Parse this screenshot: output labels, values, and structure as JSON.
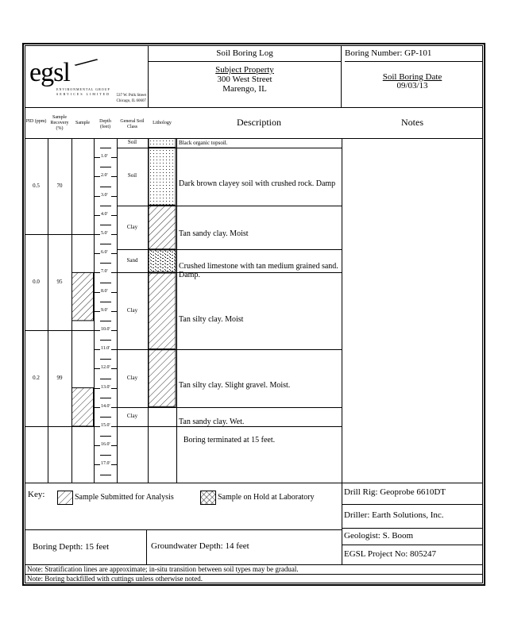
{
  "header": {
    "title": "Soil Boring Log",
    "boring_number": "Boring Number: GP-101",
    "subject_label": "Subject Property",
    "address1": "300 West Street",
    "address2": "Marengo, IL",
    "date_label": "Soil Boring Date",
    "date": "09/03/13",
    "logo": {
      "mark": "egsl",
      "line1": "ENVIRONMENTAL GROUP",
      "line2": "SERVICES LIMITED",
      "street": "537 W. Polk Street",
      "city": "Chicago, IL 60607"
    }
  },
  "columns": {
    "pid": "PID (ppm)",
    "recovery": "Sample Recovery (%)",
    "sample": "Sample",
    "depth": "Depth (feet)",
    "general": "General Soil Class",
    "lithology": "Lithology",
    "description": "Description",
    "notes": "Notes"
  },
  "depth_ticks": [
    "1.0'",
    "2.0'",
    "3.0'",
    "4.0'",
    "5.0'",
    "6.0'",
    "7.0'",
    "8.0'",
    "9.0'",
    "10.0'",
    "11.0'",
    "12.0'",
    "13.0'",
    "14.0'",
    "15.0'",
    "16.0'",
    "17.0'"
  ],
  "intervals": [
    {
      "top": 0,
      "bottom": 5,
      "pid": "0.5",
      "recovery": "70"
    },
    {
      "top": 5,
      "bottom": 10,
      "pid": "0.0",
      "recovery": "95"
    },
    {
      "top": 10,
      "bottom": 15,
      "pid": "0.2",
      "recovery": "99"
    }
  ],
  "samples": [
    {
      "top": 7,
      "bottom": 9.5,
      "type": "submitted"
    },
    {
      "top": 13,
      "bottom": 15,
      "type": "submitted"
    }
  ],
  "layers": [
    {
      "top": 0,
      "bottom": 0.5,
      "class": "Soil",
      "pattern": "dots",
      "description": "Black organic topsoil."
    },
    {
      "top": 0.5,
      "bottom": 3.5,
      "class": "Soil",
      "pattern": "dots",
      "description": "Dark brown clayey soil with crushed rock. Damp"
    },
    {
      "top": 3.5,
      "bottom": 5.8,
      "class": "Clay",
      "pattern": "hatch",
      "description": "Tan sandy clay. Moist"
    },
    {
      "top": 5.8,
      "bottom": 7,
      "class": "Sand",
      "pattern": "sand",
      "description": "Crushed limestone with tan medium grained sand. Damp."
    },
    {
      "top": 7,
      "bottom": 11,
      "class": "Clay",
      "pattern": "hatch",
      "description": "Tan silty clay. Moist"
    },
    {
      "top": 11,
      "bottom": 14,
      "class": "Clay",
      "pattern": "hatch",
      "description": "Tan silty clay. Slight gravel. Moist."
    },
    {
      "top": 14,
      "bottom": 15,
      "class": "Clay",
      "pattern": "none",
      "description": "Tan sandy clay. Wet."
    }
  ],
  "terminated": "Boring terminated at 15 feet.",
  "key": {
    "label": "Key:",
    "submitted": "Sample Submitted for Analysis",
    "hold": "Sample on Hold at Laboratory"
  },
  "info": {
    "drill_rig": "Drill Rig: Geoprobe 6610DT",
    "driller": "Driller: Earth Solutions, Inc.",
    "geologist": "Geologist: S. Boom",
    "project": "EGSL Project No: 805247",
    "boring_depth": "Boring Depth: 15 feet",
    "groundwater": "Groundwater Depth: 14 feet"
  },
  "notes": [
    "Note: Stratification lines are approximate; in-situ transition between soil types may be gradual.",
    "Note: Boring backfilled with cuttings unless otherwise noted."
  ]
}
